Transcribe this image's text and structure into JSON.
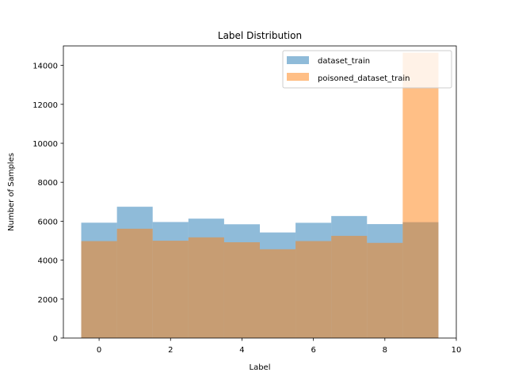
{
  "chart_data": {
    "type": "bar",
    "title": "Label Distribution",
    "xlabel": "Label",
    "ylabel": "Number of Samples",
    "xlim": [
      -1,
      10
    ],
    "ylim": [
      0,
      15000
    ],
    "xticks": [
      0,
      2,
      4,
      6,
      8,
      10
    ],
    "xtick_labels": [
      "0",
      "2",
      "4",
      "6",
      "8",
      "10"
    ],
    "yticks": [
      0,
      2000,
      4000,
      6000,
      8000,
      10000,
      12000,
      14000
    ],
    "ytick_labels": [
      "0",
      "2000",
      "4000",
      "6000",
      "8000",
      "10000",
      "12000",
      "14000"
    ],
    "categories": [
      0,
      1,
      2,
      3,
      4,
      5,
      6,
      7,
      8,
      9
    ],
    "bar_width": 1,
    "series": [
      {
        "name": "dataset_train",
        "color": "#1f77b4",
        "alpha": 0.5,
        "values": [
          5923,
          6742,
          5958,
          6131,
          5842,
          5421,
          5918,
          6265,
          5851,
          5949
        ]
      },
      {
        "name": "poisoned_dataset_train",
        "color": "#ff7f0e",
        "alpha": 0.5,
        "values": [
          4977,
          5613,
          4997,
          5170,
          4918,
          4559,
          4979,
          5247,
          4887,
          14653
        ]
      }
    ],
    "legend_position": "top-right",
    "grid": false
  }
}
